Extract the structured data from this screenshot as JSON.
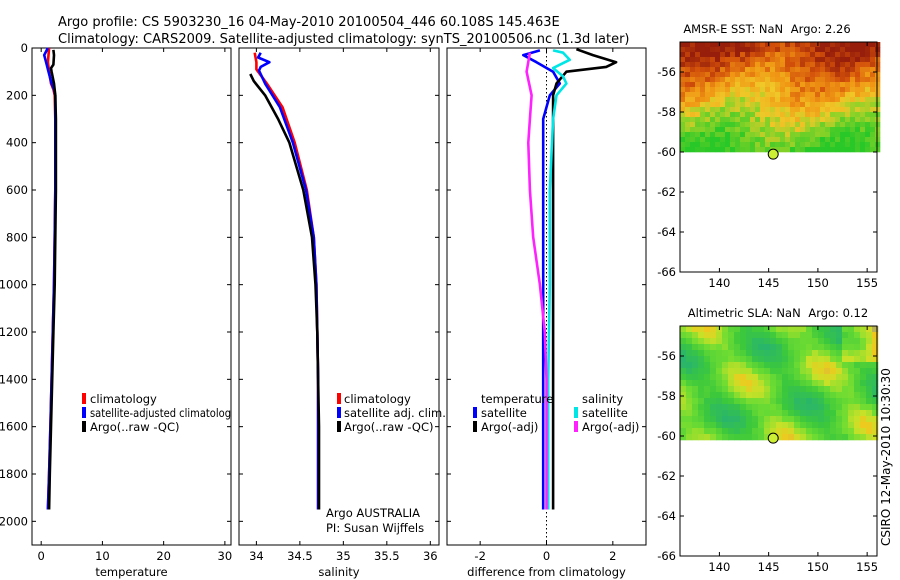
{
  "header": {
    "line1": "Argo profile: CS 5903230_16 04-May-2010 20100504_446 60.108S 145.463E",
    "line2": "Climatology: CARS2009. Satellite-adjusted climatology: synTS_20100506.nc (1.3d later)"
  },
  "colors": {
    "climatology": "#ff0000",
    "satellite": "#0000ff",
    "argo": "#000000",
    "diff_temp_argo": "#000000",
    "diff_sal_sat": "#00e5e5",
    "diff_sal_argo": "#ff22ff",
    "argo_marker": "#ccee33"
  },
  "chart_data": [
    {
      "id": "temperature",
      "type": "line",
      "xlabel": "temperature",
      "ylabel": "",
      "xlim": [
        -1.5,
        31
      ],
      "ylim": [
        2100,
        0
      ],
      "xticks": [
        0,
        10,
        20,
        30
      ],
      "yticks": [
        0,
        200,
        400,
        600,
        800,
        1000,
        1200,
        1400,
        1600,
        1800,
        2000
      ],
      "legend": {
        "placement": "lower-middle",
        "entries": [
          "climatology",
          "satellite-adjusted climatolog",
          "Argo(..raw -QC)"
        ]
      },
      "series": [
        {
          "name": "climatology",
          "color": "red",
          "points": [
            [
              1.3,
              0
            ],
            [
              1.2,
              30
            ],
            [
              1.1,
              60
            ],
            [
              1.3,
              100
            ],
            [
              1.6,
              150
            ],
            [
              2.0,
              175
            ],
            [
              2.2,
              200
            ],
            [
              2.3,
              300
            ],
            [
              2.3,
              400
            ],
            [
              2.3,
              600
            ],
            [
              2.2,
              800
            ],
            [
              2.1,
              1000
            ],
            [
              1.9,
              1200
            ],
            [
              1.7,
              1400
            ],
            [
              1.5,
              1600
            ],
            [
              1.3,
              1800
            ],
            [
              1.1,
              1950
            ]
          ]
        },
        {
          "name": "satellite-adjusted climatology",
          "color": "blue",
          "points": [
            [
              1.1,
              0
            ],
            [
              0.5,
              30
            ],
            [
              0.8,
              60
            ],
            [
              1.2,
              100
            ],
            [
              1.7,
              150
            ],
            [
              2.1,
              175
            ],
            [
              2.3,
              200
            ],
            [
              2.3,
              300
            ],
            [
              2.3,
              400
            ],
            [
              2.3,
              600
            ],
            [
              2.2,
              800
            ],
            [
              2.1,
              1000
            ],
            [
              1.9,
              1200
            ],
            [
              1.7,
              1400
            ],
            [
              1.5,
              1600
            ],
            [
              1.3,
              1800
            ],
            [
              1.1,
              1950
            ]
          ]
        },
        {
          "name": "Argo(..raw -QC)",
          "color": "black",
          "points": [
            [
              2.0,
              8
            ],
            [
              2.1,
              30
            ],
            [
              2.0,
              70
            ],
            [
              1.6,
              85
            ],
            [
              1.7,
              100
            ],
            [
              2.1,
              150
            ],
            [
              2.3,
              200
            ],
            [
              2.4,
              300
            ],
            [
              2.4,
              400
            ],
            [
              2.4,
              600
            ],
            [
              2.3,
              800
            ],
            [
              2.2,
              1000
            ],
            [
              2.0,
              1200
            ],
            [
              1.8,
              1400
            ],
            [
              1.6,
              1600
            ],
            [
              1.4,
              1800
            ],
            [
              1.3,
              1950
            ]
          ]
        }
      ]
    },
    {
      "id": "salinity",
      "type": "line",
      "xlabel": "salinity",
      "ylabel": "",
      "xlim": [
        33.8,
        36.1
      ],
      "ylim": [
        2100,
        0
      ],
      "xticks": [
        34,
        34.5,
        35,
        35.5,
        36
      ],
      "legend": {
        "placement": "lower-middle",
        "entries": [
          "climatology",
          "satellite adj. clim.",
          "Argo(..raw -QC)"
        ]
      },
      "annotation": [
        "Argo AUSTRALIA",
        "PI: Susan Wijffels"
      ],
      "series": [
        {
          "name": "climatology",
          "color": "red",
          "points": [
            [
              33.98,
              20
            ],
            [
              34.0,
              60
            ],
            [
              34.0,
              90
            ],
            [
              34.12,
              150
            ],
            [
              34.3,
              250
            ],
            [
              34.44,
              400
            ],
            [
              34.58,
              600
            ],
            [
              34.66,
              800
            ],
            [
              34.69,
              1000
            ],
            [
              34.7,
              1200
            ],
            [
              34.71,
              1400
            ],
            [
              34.71,
              1600
            ],
            [
              34.71,
              1800
            ],
            [
              34.71,
              1950
            ]
          ]
        },
        {
          "name": "satellite adj. clim.",
          "color": "blue",
          "points": [
            [
              34.05,
              20
            ],
            [
              34.02,
              40
            ],
            [
              34.15,
              60
            ],
            [
              34.05,
              80
            ],
            [
              34.03,
              95
            ],
            [
              34.1,
              150
            ],
            [
              34.27,
              250
            ],
            [
              34.42,
              400
            ],
            [
              34.57,
              600
            ],
            [
              34.66,
              800
            ],
            [
              34.69,
              1000
            ],
            [
              34.7,
              1200
            ],
            [
              34.71,
              1400
            ],
            [
              34.71,
              1600
            ],
            [
              34.71,
              1800
            ],
            [
              34.71,
              1950
            ]
          ]
        },
        {
          "name": "Argo(..raw -QC)",
          "color": "black",
          "points": [
            [
              33.93,
              110
            ],
            [
              33.97,
              140
            ],
            [
              34.1,
              200
            ],
            [
              34.25,
              300
            ],
            [
              34.38,
              400
            ],
            [
              34.54,
              600
            ],
            [
              34.64,
              800
            ],
            [
              34.68,
              1000
            ],
            [
              34.7,
              1200
            ],
            [
              34.71,
              1400
            ],
            [
              34.72,
              1600
            ],
            [
              34.72,
              1800
            ],
            [
              34.72,
              1950
            ]
          ]
        }
      ]
    },
    {
      "id": "difference",
      "type": "line",
      "xlabel": "difference from climatology",
      "ylabel": "",
      "xlim": [
        -3,
        3
      ],
      "ylim": [
        2100,
        0
      ],
      "xticks": [
        -2,
        0,
        2
      ],
      "legend": {
        "placement": "lower-middle",
        "temperature_title": "temperature",
        "salinity_title": "salinity",
        "temperature_entries": [
          "satellite",
          "Argo(-adj)"
        ],
        "salinity_entries": [
          "satellite",
          "Argo(-adj)"
        ]
      },
      "series": [
        {
          "name": "temperature satellite",
          "color": "blue",
          "points": [
            [
              -0.2,
              10
            ],
            [
              -0.7,
              30
            ],
            [
              -0.3,
              60
            ],
            [
              0.2,
              100
            ],
            [
              0.4,
              150
            ],
            [
              0.1,
              200
            ],
            [
              -0.1,
              300
            ],
            [
              -0.1,
              500
            ],
            [
              -0.1,
              800
            ],
            [
              -0.1,
              1200
            ],
            [
              -0.1,
              1600
            ],
            [
              -0.1,
              1950
            ]
          ]
        },
        {
          "name": "temperature Argo(-adj)",
          "color": "black",
          "points": [
            [
              0.9,
              5
            ],
            [
              1.4,
              30
            ],
            [
              2.1,
              60
            ],
            [
              1.8,
              80
            ],
            [
              0.6,
              100
            ],
            [
              0.3,
              150
            ],
            [
              0.2,
              200
            ],
            [
              0.2,
              300
            ],
            [
              0.2,
              600
            ],
            [
              0.2,
              1000
            ],
            [
              0.2,
              1400
            ],
            [
              0.2,
              1800
            ],
            [
              0.2,
              1950
            ]
          ]
        },
        {
          "name": "salinity satellite",
          "color": "cyan",
          "points": [
            [
              0.2,
              10
            ],
            [
              0.5,
              20
            ],
            [
              0.7,
              50
            ],
            [
              0.2,
              85
            ],
            [
              0.5,
              120
            ],
            [
              0.6,
              150
            ],
            [
              0.3,
              200
            ],
            [
              0.2,
              300
            ],
            [
              0.1,
              600
            ],
            [
              0.1,
              1000
            ],
            [
              0.05,
              1400
            ],
            [
              0.05,
              1950
            ]
          ]
        },
        {
          "name": "salinity Argo(-adj)",
          "color": "magenta",
          "points": [
            [
              -0.5,
              20
            ],
            [
              -0.6,
              100
            ],
            [
              -0.45,
              200
            ],
            [
              -0.5,
              300
            ],
            [
              -0.55,
              400
            ],
            [
              -0.5,
              600
            ],
            [
              -0.4,
              800
            ],
            [
              -0.2,
              1000
            ],
            [
              -0.05,
              1200
            ],
            [
              0.0,
              1400
            ],
            [
              0.0,
              1950
            ]
          ]
        }
      ]
    },
    {
      "id": "sst-map",
      "type": "heatmap",
      "title_prefix": "AMSR-E SST: NaN",
      "title_suffix": "Argo: 2.26",
      "xlim": [
        136,
        156
      ],
      "ylim": [
        -66,
        -54.5
      ],
      "xticks": [
        140,
        145,
        150,
        155
      ],
      "yticks": [
        -66,
        -64,
        -62,
        -60,
        -58,
        -56
      ],
      "data_extent": {
        "lon": [
          136,
          156
        ],
        "lat": [
          -60,
          -54.5
        ]
      },
      "argo_position": {
        "lon": 145.463,
        "lat": -60.108
      }
    },
    {
      "id": "sla-map",
      "type": "heatmap",
      "title_prefix": "Altimetric SLA: NaN",
      "title_suffix": "Argo: 0.12",
      "xlim": [
        136,
        156
      ],
      "ylim": [
        -66,
        -54.5
      ],
      "xticks": [
        140,
        145,
        150,
        155
      ],
      "yticks": [
        -66,
        -64,
        -62,
        -60,
        -58,
        -56
      ],
      "data_extent": {
        "lon": [
          136,
          156
        ],
        "lat": [
          -60,
          -54.5
        ]
      },
      "argo_position": {
        "lon": 145.463,
        "lat": -60.108
      }
    }
  ],
  "credit": "CSIRO 12-May-2010 10:30:30"
}
